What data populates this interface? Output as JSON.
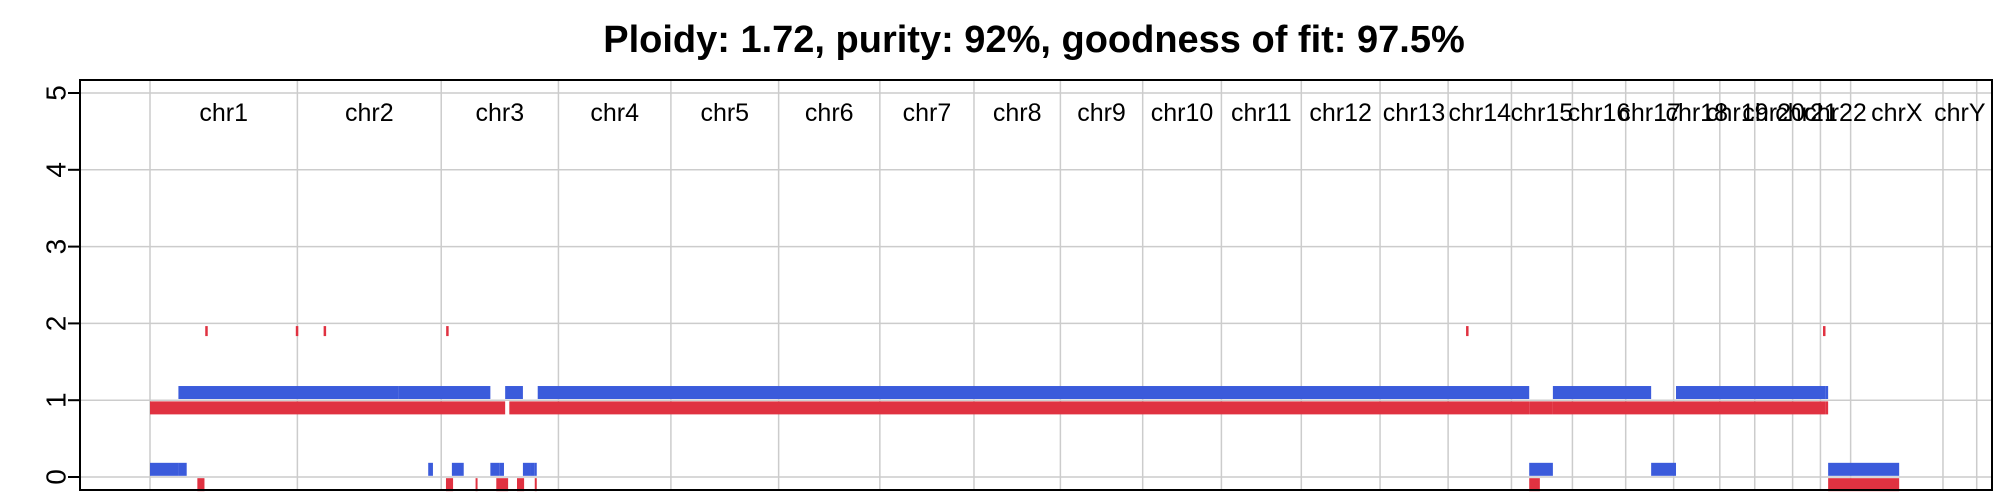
{
  "chart_data": {
    "type": "segment-track",
    "title": "Ploidy: 1.72, purity: 92%, goodness of fit: 97.5%",
    "ylim": [
      0,
      5
    ],
    "yticks": [
      "0",
      "1",
      "2",
      "3",
      "4",
      "5"
    ],
    "xrange_mb": [
      0,
      3100
    ],
    "grid": true,
    "colors": {
      "major": "#3b5bdb",
      "minor": "#e03241"
    },
    "chromosomes": [
      {
        "name": "chr1",
        "start": 0,
        "end": 249
      },
      {
        "name": "chr2",
        "start": 249,
        "end": 492
      },
      {
        "name": "chr3",
        "start": 492,
        "end": 690
      },
      {
        "name": "chr4",
        "start": 690,
        "end": 880
      },
      {
        "name": "chr5",
        "start": 880,
        "end": 1062
      },
      {
        "name": "chr6",
        "start": 1062,
        "end": 1233
      },
      {
        "name": "chr7",
        "start": 1233,
        "end": 1392
      },
      {
        "name": "chr8",
        "start": 1392,
        "end": 1538
      },
      {
        "name": "chr9",
        "start": 1538,
        "end": 1677
      },
      {
        "name": "chr10",
        "start": 1677,
        "end": 1810
      },
      {
        "name": "chr11",
        "start": 1810,
        "end": 1945
      },
      {
        "name": "chr12",
        "start": 1945,
        "end": 2078
      },
      {
        "name": "chr13",
        "start": 2078,
        "end": 2193
      },
      {
        "name": "chr14",
        "start": 2193,
        "end": 2300
      },
      {
        "name": "chr15",
        "start": 2300,
        "end": 2403
      },
      {
        "name": "chr16",
        "start": 2403,
        "end": 2493
      },
      {
        "name": "chr17",
        "start": 2493,
        "end": 2574
      },
      {
        "name": "chr18",
        "start": 2574,
        "end": 2652
      },
      {
        "name": "chr19",
        "start": 2652,
        "end": 2711
      },
      {
        "name": "chr20",
        "start": 2711,
        "end": 2775
      },
      {
        "name": "chr21",
        "start": 2775,
        "end": 2822
      },
      {
        "name": "chr22",
        "start": 2822,
        "end": 2873
      },
      {
        "name": "chrX",
        "start": 2873,
        "end": 3029
      },
      {
        "name": "chrY",
        "start": 3029,
        "end": 3086
      }
    ],
    "major_segments": [
      {
        "start": 0,
        "end": 48,
        "cn": 0.1
      },
      {
        "start": 48,
        "end": 62,
        "cn": 0.1
      },
      {
        "start": 48,
        "end": 420,
        "cn": 1.1
      },
      {
        "start": 470,
        "end": 478,
        "cn": 0.1
      },
      {
        "start": 510,
        "end": 530,
        "cn": 0.1
      },
      {
        "start": 590,
        "end": 598,
        "cn": 0.1
      },
      {
        "start": 630,
        "end": 642,
        "cn": 0.1
      },
      {
        "start": 420,
        "end": 575,
        "cn": 1.1
      },
      {
        "start": 575,
        "end": 590,
        "cn": 0.1
      },
      {
        "start": 600,
        "end": 630,
        "cn": 1.1
      },
      {
        "start": 642,
        "end": 650,
        "cn": 0.1
      },
      {
        "start": 650,
        "end": 652,
        "cn": 0.1
      },
      {
        "start": 655,
        "end": 2330,
        "cn": 1.1
      },
      {
        "start": 2330,
        "end": 2370,
        "cn": 0.1
      },
      {
        "start": 2370,
        "end": 2536,
        "cn": 1.1
      },
      {
        "start": 2536,
        "end": 2578,
        "cn": 0.1
      },
      {
        "start": 2578,
        "end": 2830,
        "cn": 1.1
      },
      {
        "start": 2830,
        "end": 2835,
        "cn": 1.1
      },
      {
        "start": 2835,
        "end": 2955,
        "cn": 0.1
      }
    ],
    "minor_segments": [
      {
        "start": 0,
        "end": 600,
        "cn": 0.9
      },
      {
        "start": 607,
        "end": 2330,
        "cn": 0.9
      },
      {
        "start": 2330,
        "end": 2370,
        "cn": 0.9
      },
      {
        "start": 2370,
        "end": 2830,
        "cn": 0.9
      },
      {
        "start": 2830,
        "end": 2835,
        "cn": 0.9
      },
      {
        "start": 2835,
        "end": 2955,
        "cn": -0.1
      },
      {
        "start": 2330,
        "end": 2348,
        "cn": -0.1
      },
      {
        "start": 80,
        "end": 92,
        "cn": -0.1
      },
      {
        "start": 500,
        "end": 512,
        "cn": -0.1
      },
      {
        "start": 550,
        "end": 553,
        "cn": -0.1
      },
      {
        "start": 585,
        "end": 605,
        "cn": -0.1
      },
      {
        "start": 620,
        "end": 632,
        "cn": -0.1
      },
      {
        "start": 650,
        "end": 653,
        "cn": -0.1
      }
    ],
    "minor_ticks": [
      {
        "x": 95,
        "cn": 1.9
      },
      {
        "x": 248,
        "cn": 1.9
      },
      {
        "x": 295,
        "cn": 1.9
      },
      {
        "x": 502,
        "cn": 1.9
      },
      {
        "x": 2225,
        "cn": 1.9
      },
      {
        "x": 2828,
        "cn": 1.9
      }
    ]
  }
}
